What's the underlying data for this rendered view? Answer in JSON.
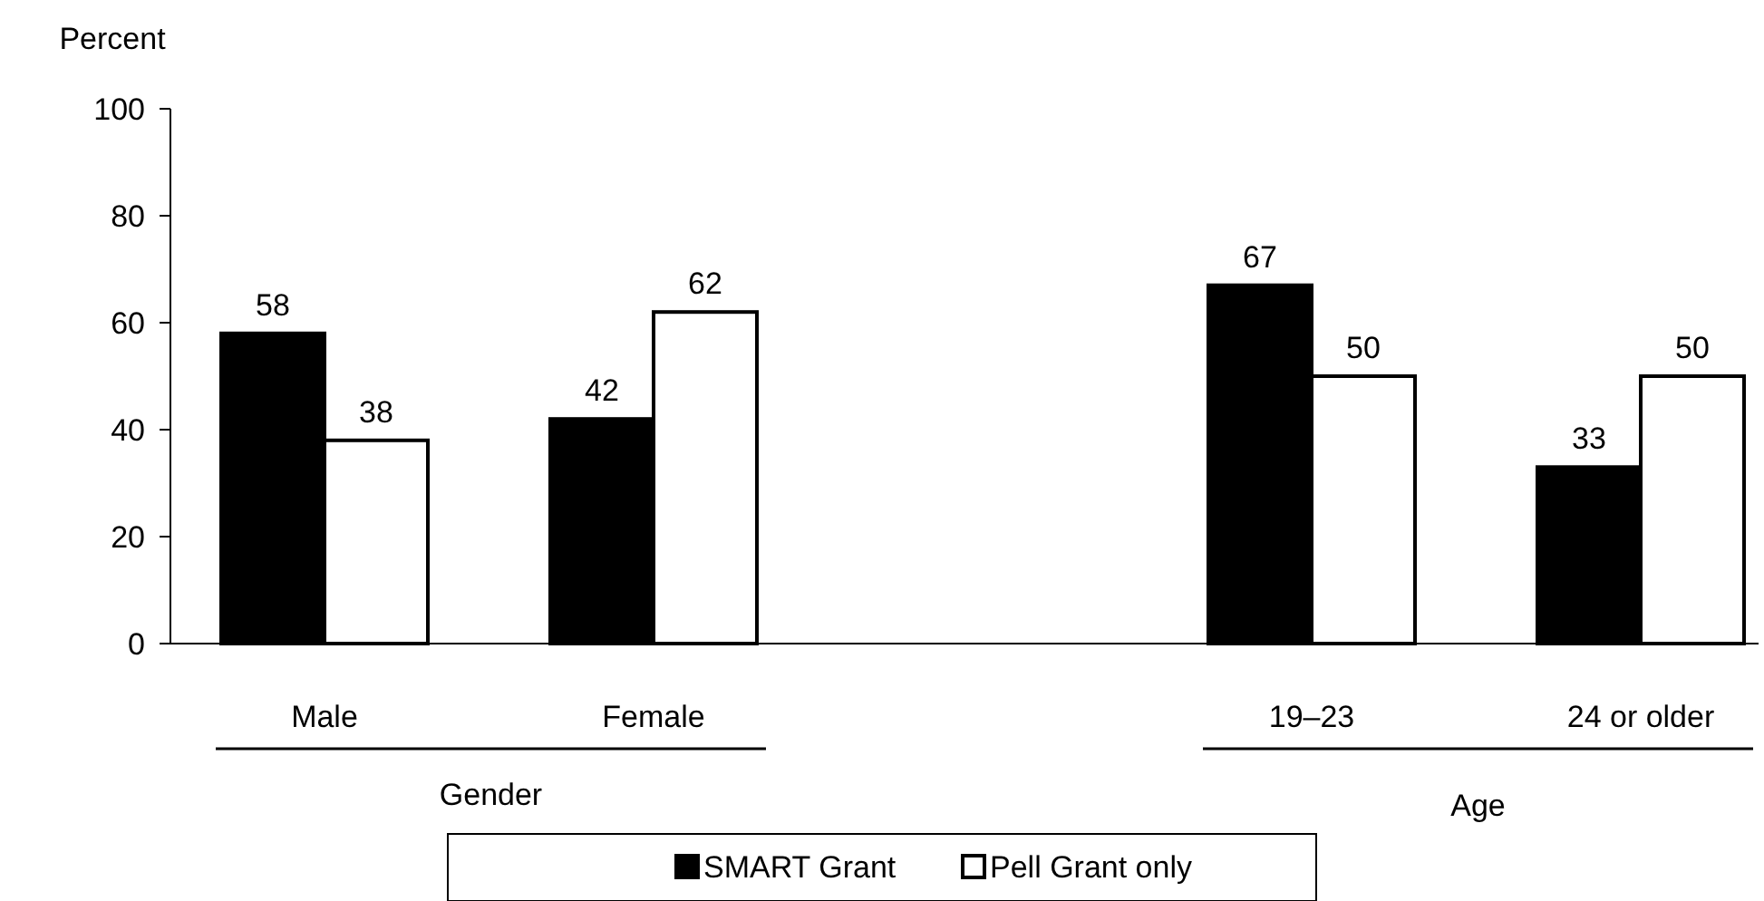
{
  "chart_data": {
    "type": "bar",
    "ylabel": "Percent",
    "categories": [
      "Male",
      "Female",
      null,
      "19–23",
      "24 or older"
    ],
    "series": [
      {
        "name": "SMART Grant",
        "color": "#000000",
        "values": [
          58,
          42,
          null,
          67,
          33
        ]
      },
      {
        "name": "Pell Grant only",
        "color": "#ffffff",
        "values": [
          38,
          62,
          null,
          50,
          50
        ]
      }
    ],
    "ylim": [
      0,
      100
    ],
    "yticks": [
      0,
      20,
      40,
      60,
      80,
      100
    ],
    "data_labels": true,
    "grid": false,
    "legend": "bottom",
    "annotations": [
      "Gender",
      "Age"
    ]
  }
}
